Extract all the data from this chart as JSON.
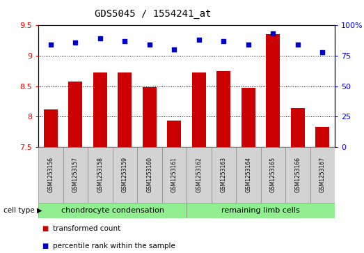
{
  "title": "GDS5045 / 1554241_at",
  "samples": [
    "GSM1253156",
    "GSM1253157",
    "GSM1253158",
    "GSM1253159",
    "GSM1253160",
    "GSM1253161",
    "GSM1253162",
    "GSM1253163",
    "GSM1253164",
    "GSM1253165",
    "GSM1253166",
    "GSM1253167"
  ],
  "bar_values": [
    8.12,
    8.57,
    8.72,
    8.72,
    8.48,
    7.93,
    8.72,
    8.75,
    8.47,
    9.35,
    8.14,
    7.83
  ],
  "dot_values_pct": [
    84,
    86,
    89,
    87,
    84,
    80,
    88,
    87,
    84,
    93,
    84,
    78
  ],
  "ylim_left": [
    7.5,
    9.5
  ],
  "ylim_right": [
    0,
    100
  ],
  "yticks_left": [
    7.5,
    8.0,
    8.5,
    9.0,
    9.5
  ],
  "yticks_right": [
    0,
    25,
    50,
    75,
    100
  ],
  "bar_color": "#CC0000",
  "dot_color": "#0000CC",
  "group1_label": "chondrocyte condensation",
  "group2_label": "remaining limb cells",
  "group1_count": 6,
  "group2_count": 6,
  "cell_type_label": "cell type",
  "legend1": "transformed count",
  "legend2": "percentile rank within the sample",
  "sample_bg": "#D3D3D3",
  "group_bg": "#90EE90",
  "bar_bottom": 7.5
}
